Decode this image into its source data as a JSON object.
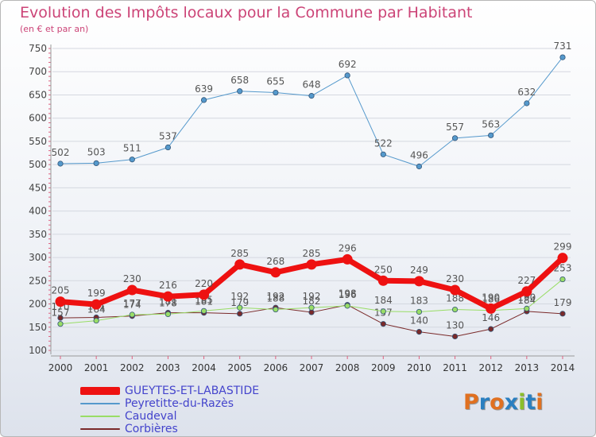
{
  "title": "Evolution des Impôts locaux pour la Commune par Habitant",
  "subtitle": "(en € et par an)",
  "logo": {
    "text": "Proxiti",
    "letters": [
      "P",
      "r",
      "o",
      "x",
      "i",
      "t",
      "i"
    ],
    "colors": [
      "#e07020",
      "#2a7fc0",
      "#e07020",
      "#2a7fc0",
      "#8bbf2a",
      "#2a7fc0",
      "#e07020"
    ]
  },
  "chart_data": {
    "type": "line",
    "x": [
      "2000",
      "2001",
      "2002",
      "2003",
      "2004",
      "2005",
      "2006",
      "2007",
      "2008",
      "2009",
      "2010",
      "2011",
      "2012",
      "2013",
      "2014"
    ],
    "ylim": [
      100,
      750
    ],
    "yticks": [
      100,
      150,
      200,
      250,
      300,
      350,
      400,
      450,
      500,
      550,
      600,
      650,
      700,
      750
    ],
    "grid": "horizontal",
    "legend_placement": "bottom-left",
    "series": [
      {
        "name": "Corbières",
        "color": "#7a2a2a",
        "width": 1,
        "values": [
          170,
          171,
          174,
          181,
          181,
          179,
          192,
          182,
          198,
          157,
          140,
          130,
          146,
          184,
          179
        ],
        "labels": [
          "170",
          "171",
          "174",
          "181",
          "181",
          "179",
          "192",
          "182",
          "198",
          "157",
          "140",
          "130",
          "146",
          "184",
          "179"
        ]
      },
      {
        "name": "Caudeval",
        "color": "#99dd66",
        "width": 1,
        "values": [
          157,
          164,
          177,
          178,
          185,
          192,
          188,
          192,
          196,
          184,
          183,
          188,
          186,
          190,
          253
        ],
        "labels": [
          "157",
          "164",
          "177",
          "178",
          "185",
          "192",
          "188",
          "192",
          "196",
          "184",
          "183",
          "188",
          "186",
          "190",
          "253"
        ]
      },
      {
        "name": "Peyretitte-du-Razès",
        "color": "#5599cc",
        "width": 1,
        "values": [
          502,
          503,
          511,
          537,
          639,
          658,
          655,
          648,
          692,
          522,
          496,
          557,
          563,
          632,
          731
        ],
        "labels": [
          "502",
          "503",
          "511",
          "537",
          "639",
          "658",
          "655",
          "648",
          "692",
          "522",
          "496",
          "557",
          "563",
          "632",
          "731"
        ]
      },
      {
        "name": "GUEYTES-ET-LABASTIDE",
        "color": "#ee1111",
        "width": 7,
        "values": [
          205,
          199,
          230,
          216,
          220,
          285,
          268,
          285,
          296,
          250,
          249,
          230,
          190,
          227,
          299
        ],
        "labels": [
          "205",
          "199",
          "230",
          "216",
          "220",
          "285",
          "268",
          "285",
          "296",
          "250",
          "249",
          "230",
          "190",
          "227",
          "299"
        ]
      }
    ]
  }
}
